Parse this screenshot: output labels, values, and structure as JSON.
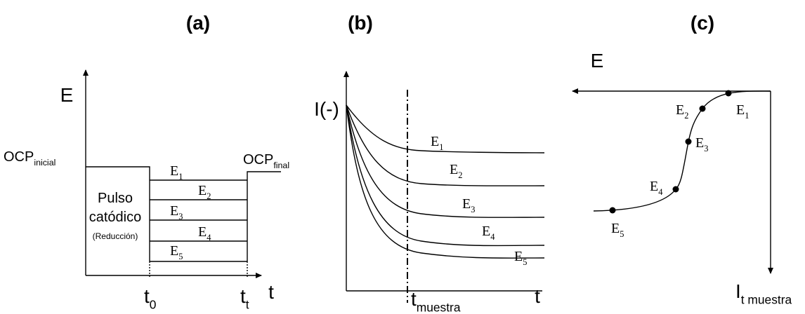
{
  "panels": [
    {
      "label": "(a)",
      "axis_y": "E",
      "axis_x": "t",
      "ocp_initial": {
        "base": "OCP",
        "sub": "inicial"
      },
      "ocp_final": {
        "base": "OCP",
        "sub": "final"
      },
      "pulse": [
        "Pulso",
        "catódico",
        "(Reducción)"
      ],
      "levels": [
        {
          "base": "E",
          "sub": "1"
        },
        {
          "base": "E",
          "sub": "2"
        },
        {
          "base": "E",
          "sub": "3"
        },
        {
          "base": "E",
          "sub": "4"
        },
        {
          "base": "E",
          "sub": "5"
        }
      ],
      "t_start": {
        "base": "t",
        "sub": "0"
      },
      "t_end": {
        "base": "t",
        "sub": "t"
      }
    },
    {
      "label": "(b)",
      "axis_y": "I(-)",
      "axis_x": "t",
      "sample_time": {
        "base": "t",
        "sub": "muestra"
      },
      "levels": [
        {
          "base": "E",
          "sub": "1"
        },
        {
          "base": "E",
          "sub": "2"
        },
        {
          "base": "E",
          "sub": "3"
        },
        {
          "base": "E",
          "sub": "4"
        },
        {
          "base": "E",
          "sub": "5"
        }
      ]
    },
    {
      "label": "(c)",
      "axis_x": "E",
      "axis_y": {
        "base": "I",
        "sub": "t muestra"
      },
      "levels": [
        {
          "base": "E",
          "sub": "1"
        },
        {
          "base": "E",
          "sub": "2"
        },
        {
          "base": "E",
          "sub": "3"
        },
        {
          "base": "E",
          "sub": "4"
        },
        {
          "base": "E",
          "sub": "5"
        }
      ]
    }
  ]
}
